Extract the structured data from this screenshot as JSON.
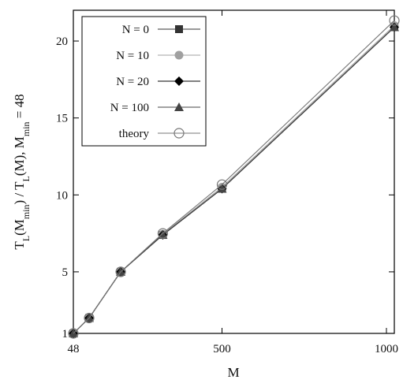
{
  "chart_data": {
    "type": "line",
    "xlabel": "M",
    "ylabel_parts": [
      "T",
      "L",
      "(M",
      "min",
      ") / T",
      "L",
      "(M), M",
      "min",
      " = 48"
    ],
    "x_ticks": [
      48,
      500,
      1000
    ],
    "y_ticks": [
      1,
      5,
      10,
      15,
      20
    ],
    "xlim": [
      48,
      1024
    ],
    "ylim": [
      1,
      22
    ],
    "grid": false,
    "legend_position": "top-left",
    "series": [
      {
        "name": "N = 0",
        "marker": "square",
        "color": "#333333",
        "x": [
          48,
          96,
          192,
          320,
          500,
          1024
        ],
        "y": [
          1.0,
          2.0,
          5.0,
          7.4,
          10.4,
          20.9
        ]
      },
      {
        "name": "N = 10",
        "marker": "circle",
        "color": "#a0a0a0",
        "x": [
          48,
          96,
          192,
          320,
          500,
          1024
        ],
        "y": [
          1.0,
          2.0,
          5.0,
          7.45,
          10.5,
          21.0
        ]
      },
      {
        "name": "N = 20",
        "marker": "diamond",
        "color": "#000000",
        "x": [
          48,
          96,
          192,
          320,
          500,
          1024
        ],
        "y": [
          1.0,
          2.0,
          5.0,
          7.4,
          10.4,
          20.9
        ]
      },
      {
        "name": "N = 100",
        "marker": "triangle",
        "color": "#444444",
        "x": [
          48,
          96,
          192,
          320,
          500,
          1024
        ],
        "y": [
          1.0,
          2.0,
          5.0,
          7.4,
          10.4,
          20.9
        ]
      },
      {
        "name": "theory",
        "marker": "open-circle",
        "color": "#777777",
        "x": [
          48,
          96,
          192,
          320,
          500,
          1024
        ],
        "y": [
          1.0,
          2.0,
          5.0,
          7.5,
          10.67,
          21.33
        ]
      }
    ]
  }
}
